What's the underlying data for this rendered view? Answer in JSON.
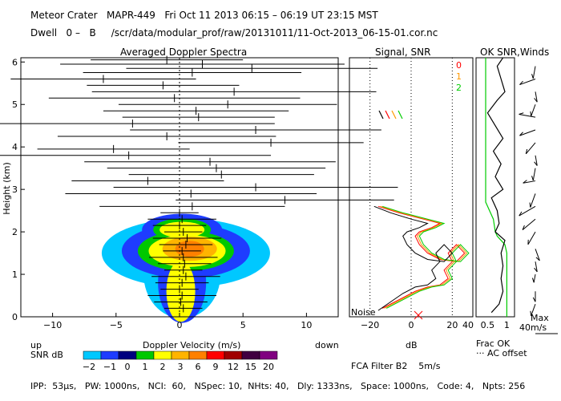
{
  "header": {
    "line1": "Meteor Crater   MAPR-449   Fri Oct 11 2013 06:15 – 06:19 UT 23:15 MST",
    "line2": "Dwell   0 –   B     /scr/data/modular_prof/raw/20131011/11-Oct-2013_06-15-01.cor.nc"
  },
  "footer": {
    "params": "IPP:  53µs,   PW: 1000ns,   NCI:  60,   NSpec: 10,  NHts: 40,   Dly: 1333ns,   Space: 1000ns,   Code: 4,   Npts: 256",
    "filter": "FCA Filter B2    5m/s"
  },
  "labels": {
    "up": "up",
    "down": "down",
    "noise": "Noise",
    "max_wind": "Max",
    "max_wind_value": "40m/s",
    "frac_ok": "Frac OK",
    "ac_offset": "··· AC offset",
    "snr_db": "SNR dB"
  },
  "colorbar": {
    "ticks": [
      "−2",
      "−1",
      "0",
      "1",
      "2",
      "3",
      "6",
      "9",
      "12",
      "15",
      "20"
    ],
    "colors": [
      "#00c8ff",
      "#1e3cff",
      "#00007f",
      "#00c800",
      "#ffff00",
      "#ffb400",
      "#ff8000",
      "#ff0000",
      "#a00000",
      "#400040",
      "#800080"
    ]
  },
  "chart_data": [
    {
      "type": "heatmap",
      "title": "Averaged Doppler Spectra",
      "xlabel": "Doppler Velocity (m/s)",
      "ylabel": "Height (km)",
      "xlim": [
        -12.5,
        12.5
      ],
      "ylim": [
        0,
        6.1
      ],
      "xticks": [
        "−10",
        "−5",
        "0",
        "5",
        "10"
      ],
      "yticks": [
        "0",
        "1",
        "2",
        "3",
        "4",
        "5",
        "6"
      ],
      "mean_velocity": [
        {
          "h": 0.2,
          "v": 0.3
        },
        {
          "h": 0.35,
          "v": 0.1
        },
        {
          "h": 0.5,
          "v": 0.2
        },
        {
          "h": 0.65,
          "v": 0.0
        },
        {
          "h": 0.8,
          "v": 0.2
        },
        {
          "h": 0.95,
          "v": 0.5
        },
        {
          "h": 1.1,
          "v": 0.3
        },
        {
          "h": 1.25,
          "v": 0.4
        },
        {
          "h": 1.4,
          "v": 0.3
        },
        {
          "h": 1.55,
          "v": 0.2
        },
        {
          "h": 1.7,
          "v": 0.5
        },
        {
          "h": 1.85,
          "v": 0.6
        },
        {
          "h": 2.0,
          "v": 0.3
        },
        {
          "h": 2.15,
          "v": 0.0
        },
        {
          "h": 2.3,
          "v": 0.2
        },
        {
          "h": 2.45,
          "v": 0.0
        },
        {
          "h": 2.6,
          "v": 1.0
        },
        {
          "h": 2.75,
          "v": 8.3
        },
        {
          "h": 2.9,
          "v": 0.9
        },
        {
          "h": 3.05,
          "v": 6.0
        },
        {
          "h": 3.2,
          "v": -2.5
        },
        {
          "h": 3.35,
          "v": 3.3
        },
        {
          "h": 3.5,
          "v": 2.9
        },
        {
          "h": 3.65,
          "v": 2.4
        },
        {
          "h": 3.8,
          "v": -4.0
        },
        {
          "h": 3.95,
          "v": -5.2
        },
        {
          "h": 4.1,
          "v": 7.2
        },
        {
          "h": 4.25,
          "v": -1.0
        },
        {
          "h": 4.4,
          "v": 6.0
        },
        {
          "h": 4.55,
          "v": -3.7
        },
        {
          "h": 4.7,
          "v": 1.5
        },
        {
          "h": 4.85,
          "v": 1.3
        },
        {
          "h": 5.0,
          "v": 3.8
        },
        {
          "h": 5.15,
          "v": -0.4
        },
        {
          "h": 5.3,
          "v": 4.3
        },
        {
          "h": 5.45,
          "v": -1.3
        },
        {
          "h": 5.6,
          "v": -6.0
        },
        {
          "h": 5.75,
          "v": 1.0
        },
        {
          "h": 5.85,
          "v": 5.7
        },
        {
          "h": 5.95,
          "v": 1.8
        },
        {
          "h": 6.05,
          "v": -1.0
        }
      ]
    },
    {
      "type": "line",
      "title": "Signal, SNR",
      "xlabel": "dB",
      "xlim": [
        -30,
        30
      ],
      "ylim": [
        0,
        6.1
      ],
      "xticks": [
        "−20",
        "0",
        "20"
      ],
      "series": [
        {
          "name": "0",
          "color": "#ff0000",
          "points": [
            [
              -14,
              0.2
            ],
            [
              -6,
              0.4
            ],
            [
              2,
              0.6
            ],
            [
              8,
              0.7
            ],
            [
              14,
              0.75
            ],
            [
              18,
              0.9
            ],
            [
              16,
              1.1
            ],
            [
              20,
              1.3
            ],
            [
              18,
              1.5
            ],
            [
              22,
              1.7
            ],
            [
              24,
              1.6
            ],
            [
              26,
              1.5
            ],
            [
              22,
              1.3
            ],
            [
              14,
              1.35
            ],
            [
              8,
              1.5
            ],
            [
              4,
              1.7
            ],
            [
              2,
              1.9
            ],
            [
              4,
              2.0
            ],
            [
              10,
              2.1
            ],
            [
              14,
              2.2
            ],
            [
              6,
              2.3
            ],
            [
              -6,
              2.45
            ],
            [
              -16,
              2.6
            ]
          ]
        },
        {
          "name": "1",
          "color": "#ff9900",
          "points": [
            [
              -13,
              0.2
            ],
            [
              -5,
              0.4
            ],
            [
              3,
              0.6
            ],
            [
              9,
              0.7
            ],
            [
              15,
              0.75
            ],
            [
              19,
              0.9
            ],
            [
              17,
              1.1
            ],
            [
              21,
              1.3
            ],
            [
              19,
              1.5
            ],
            [
              23,
              1.7
            ],
            [
              25,
              1.6
            ],
            [
              27,
              1.5
            ],
            [
              23,
              1.3
            ],
            [
              15,
              1.35
            ],
            [
              9,
              1.5
            ],
            [
              5,
              1.7
            ],
            [
              3,
              1.9
            ],
            [
              5,
              2.0
            ],
            [
              11,
              2.1
            ],
            [
              15,
              2.2
            ],
            [
              7,
              2.3
            ],
            [
              -5,
              2.45
            ],
            [
              -15,
              2.6
            ]
          ]
        },
        {
          "name": "2",
          "color": "#00cc00",
          "points": [
            [
              -12,
              0.2
            ],
            [
              -4,
              0.4
            ],
            [
              4,
              0.6
            ],
            [
              10,
              0.7
            ],
            [
              16,
              0.75
            ],
            [
              20,
              0.9
            ],
            [
              18,
              1.1
            ],
            [
              22,
              1.3
            ],
            [
              20,
              1.5
            ],
            [
              24,
              1.7
            ],
            [
              26,
              1.6
            ],
            [
              28,
              1.5
            ],
            [
              24,
              1.3
            ],
            [
              16,
              1.35
            ],
            [
              10,
              1.5
            ],
            [
              6,
              1.7
            ],
            [
              4,
              1.9
            ],
            [
              6,
              2.0
            ],
            [
              12,
              2.1
            ],
            [
              16,
              2.2
            ],
            [
              8,
              2.3
            ],
            [
              -4,
              2.45
            ],
            [
              -14,
              2.6
            ]
          ]
        },
        {
          "name": "noise",
          "color": "#000000",
          "points": [
            [
              -16,
              0.15
            ],
            [
              -10,
              0.35
            ],
            [
              -4,
              0.55
            ],
            [
              2,
              0.7
            ],
            [
              8,
              0.75
            ],
            [
              12,
              0.9
            ],
            [
              10,
              1.1
            ],
            [
              14,
              1.3
            ],
            [
              12,
              1.5
            ],
            [
              16,
              1.7
            ],
            [
              18,
              1.6
            ],
            [
              20,
              1.5
            ],
            [
              16,
              1.3
            ],
            [
              8,
              1.35
            ],
            [
              2,
              1.5
            ],
            [
              -2,
              1.7
            ],
            [
              -4,
              1.9
            ],
            [
              -2,
              2.0
            ],
            [
              4,
              2.1
            ],
            [
              8,
              2.2
            ],
            [
              0,
              2.3
            ],
            [
              -10,
              2.45
            ],
            [
              -18,
              2.6
            ]
          ]
        }
      ]
    },
    {
      "type": "line",
      "title": "OK SNR,Winds",
      "xlabel": "Frac OK",
      "xticks": [
        "0.5",
        "1"
      ],
      "xlim": [
        0.2,
        1.2
      ],
      "ylim": [
        0,
        6.1
      ],
      "series": [
        {
          "name": "frac_ok",
          "color": "#00cc00",
          "points": [
            [
              1.0,
              0
            ],
            [
              1.0,
              1.5
            ],
            [
              0.95,
              1.7
            ],
            [
              0.85,
              1.8
            ],
            [
              0.75,
              1.9
            ],
            [
              0.7,
              2.0
            ],
            [
              0.65,
              2.3
            ],
            [
              0.55,
              2.5
            ],
            [
              0.5,
              2.6
            ],
            [
              0.45,
              2.7
            ],
            [
              0.45,
              6.1
            ]
          ]
        },
        {
          "name": "snr_ok",
          "color": "#000000",
          "points": [
            [
              0.6,
              0.1
            ],
            [
              0.8,
              0.3
            ],
            [
              0.9,
              0.6
            ],
            [
              0.85,
              0.9
            ],
            [
              0.9,
              1.2
            ],
            [
              0.85,
              1.5
            ],
            [
              0.95,
              1.8
            ],
            [
              0.7,
              2.0
            ],
            [
              0.8,
              2.2
            ],
            [
              0.75,
              2.5
            ],
            [
              0.6,
              2.8
            ],
            [
              0.9,
              3.0
            ],
            [
              0.7,
              3.3
            ],
            [
              0.85,
              3.6
            ],
            [
              0.65,
              3.9
            ],
            [
              0.9,
              4.2
            ],
            [
              0.7,
              4.5
            ],
            [
              0.5,
              4.8
            ],
            [
              0.75,
              5.1
            ],
            [
              0.95,
              5.3
            ],
            [
              0.85,
              5.6
            ],
            [
              0.75,
              5.9
            ],
            [
              0.9,
              6.1
            ]
          ]
        }
      ]
    }
  ],
  "wind_barbs": [
    {
      "h": 0.3,
      "dir": 200,
      "len": 0.6
    },
    {
      "h": 0.6,
      "dir": 180,
      "len": 0.5
    },
    {
      "h": 1.0,
      "dir": 190,
      "len": 0.4
    },
    {
      "h": 1.3,
      "dir": 170,
      "len": 0.5
    },
    {
      "h": 1.6,
      "dir": 160,
      "len": 0.6
    },
    {
      "h": 2.0,
      "dir": 210,
      "len": 0.7
    },
    {
      "h": 2.3,
      "dir": 230,
      "len": 0.8
    },
    {
      "h": 2.6,
      "dir": 240,
      "len": 0.9
    },
    {
      "h": 2.9,
      "dir": 200,
      "len": 0.7
    },
    {
      "h": 3.2,
      "dir": 260,
      "len": 0.6
    },
    {
      "h": 3.5,
      "dir": 190,
      "len": 0.6
    },
    {
      "h": 3.8,
      "dir": 170,
      "len": 0.5
    },
    {
      "h": 4.1,
      "dir": 220,
      "len": 0.7
    },
    {
      "h": 4.4,
      "dir": 250,
      "len": 0.8
    },
    {
      "h": 4.7,
      "dir": 280,
      "len": 0.8
    },
    {
      "h": 5.0,
      "dir": 200,
      "len": 0.6
    },
    {
      "h": 5.3,
      "dir": 170,
      "len": 0.5
    },
    {
      "h": 5.6,
      "dir": 250,
      "len": 0.8
    },
    {
      "h": 5.9,
      "dir": 190,
      "len": 0.6
    }
  ]
}
